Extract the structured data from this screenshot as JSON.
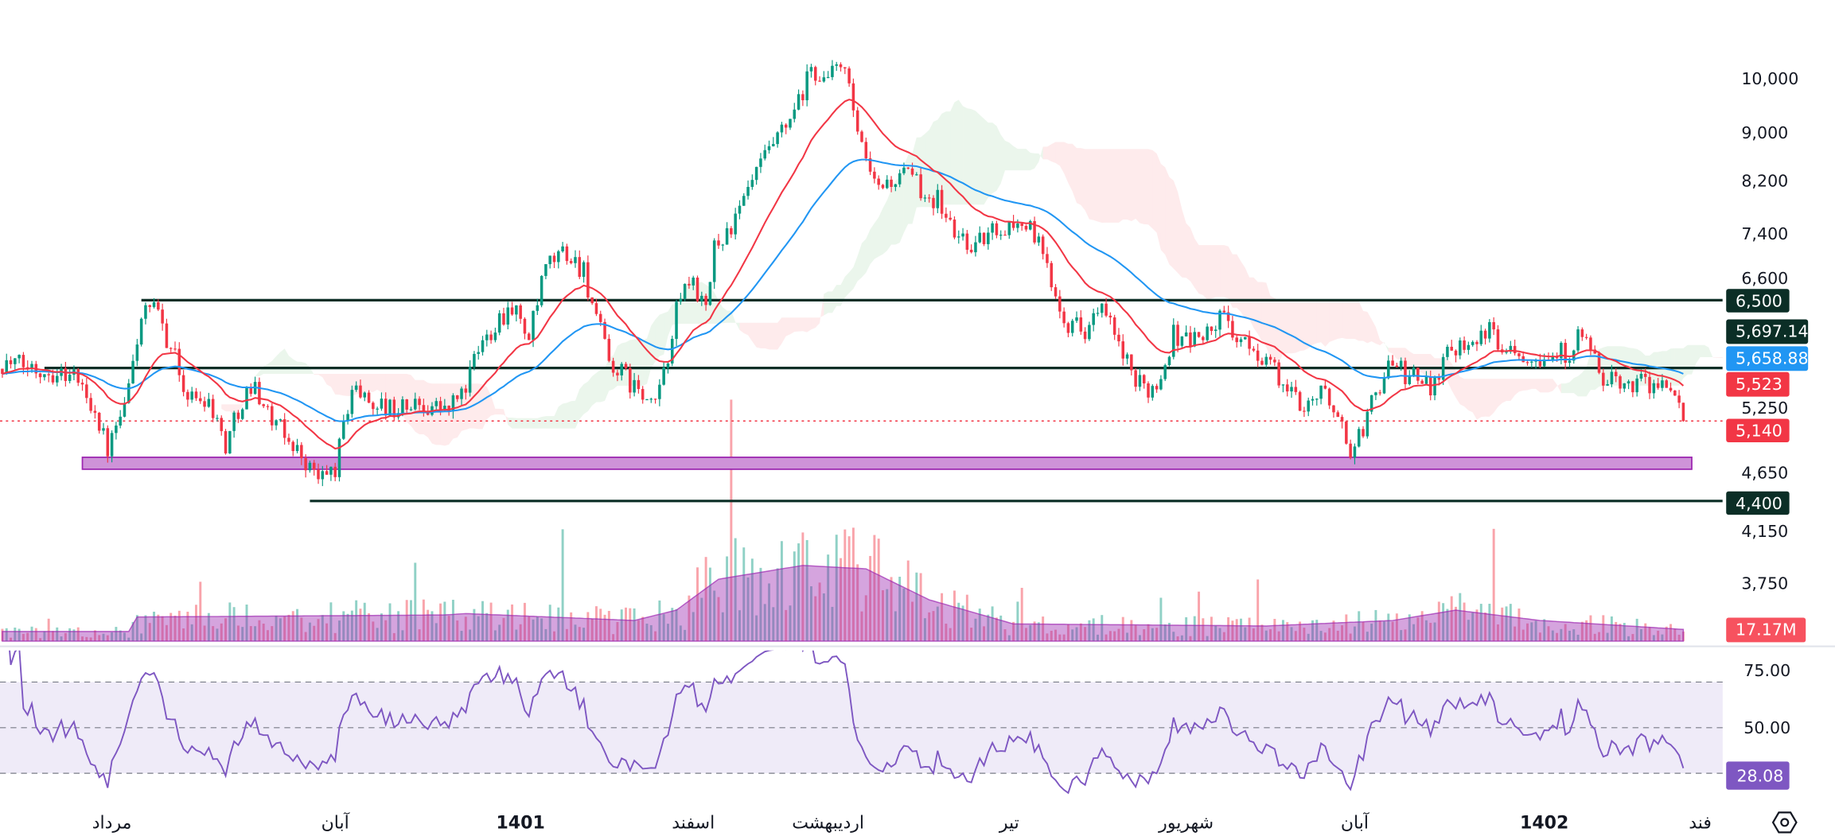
{
  "chart_data": {
    "type": "candlestick",
    "scale": "log",
    "price_axis_ticks": [
      "10,000",
      "9,000",
      "8,200",
      "7,400",
      "6,600",
      "5,250",
      "4,650",
      "4,150",
      "3,750"
    ],
    "price_axis_tick_values": [
      10000,
      9000,
      8200,
      7400,
      6600,
      5250,
      4650,
      4150,
      3750
    ],
    "time_axis_labels": [
      {
        "label": "مرداد",
        "bar": 26,
        "bold": false
      },
      {
        "label": "آبان",
        "bar": 79,
        "bold": false
      },
      {
        "label": "1401",
        "bar": 123,
        "bold": true
      },
      {
        "label": "اسفند",
        "bar": 164,
        "bold": false
      },
      {
        "label": "اردیبهشت",
        "bar": 196,
        "bold": false
      },
      {
        "label": "تیر",
        "bar": 239,
        "bold": false
      },
      {
        "label": "شهریور",
        "bar": 281,
        "bold": false
      },
      {
        "label": "آبان",
        "bar": 321,
        "bold": false
      },
      {
        "label": "1402",
        "bar": 366,
        "bold": true
      },
      {
        "label": "فند",
        "bar": 403,
        "bold": false
      }
    ],
    "close_keypoints": [
      [
        0,
        5757
      ],
      [
        8,
        5692
      ],
      [
        17,
        5627
      ],
      [
        22,
        5256
      ],
      [
        25,
        4854
      ],
      [
        29,
        5256
      ],
      [
        33,
        6304
      ],
      [
        36,
        6376
      ],
      [
        40,
        5956
      ],
      [
        44,
        5377
      ],
      [
        49,
        5377
      ],
      [
        53,
        4910
      ],
      [
        57,
        5377
      ],
      [
        60,
        5501
      ],
      [
        64,
        5138
      ],
      [
        69,
        4910
      ],
      [
        75,
        4586
      ],
      [
        79,
        4691
      ],
      [
        83,
        5501
      ],
      [
        86,
        5377
      ],
      [
        92,
        5256
      ],
      [
        100,
        5316
      ],
      [
        106,
        5256
      ],
      [
        110,
        5501
      ],
      [
        113,
        5889
      ],
      [
        117,
        6233
      ],
      [
        121,
        6449
      ],
      [
        125,
        6024
      ],
      [
        129,
        6904
      ],
      [
        133,
        7143
      ],
      [
        138,
        6904
      ],
      [
        140,
        6449
      ],
      [
        144,
        5757
      ],
      [
        150,
        5501
      ],
      [
        154,
        5256
      ],
      [
        157,
        5627
      ],
      [
        161,
        6598
      ],
      [
        164,
        6749
      ],
      [
        167,
        6304
      ],
      [
        169,
        7225
      ],
      [
        174,
        7562
      ],
      [
        178,
        8187
      ],
      [
        182,
        8666
      ],
      [
        186,
        9069
      ],
      [
        189,
        9490
      ],
      [
        192,
        10160
      ],
      [
        196,
        9932
      ],
      [
        199,
        10394
      ],
      [
        201,
        9709
      ],
      [
        204,
        8666
      ],
      [
        207,
        8095
      ],
      [
        211,
        8187
      ],
      [
        215,
        8281
      ],
      [
        219,
        8004
      ],
      [
        222,
        7913
      ],
      [
        226,
        7391
      ],
      [
        231,
        7225
      ],
      [
        236,
        7476
      ],
      [
        243,
        7562
      ],
      [
        246,
        7225
      ],
      [
        250,
        6598
      ],
      [
        253,
        6233
      ],
      [
        257,
        6163
      ],
      [
        261,
        6376
      ],
      [
        265,
        5956
      ],
      [
        269,
        5501
      ],
      [
        274,
        5501
      ],
      [
        278,
        6093
      ],
      [
        282,
        6024
      ],
      [
        286,
        6093
      ],
      [
        290,
        6304
      ],
      [
        294,
        5956
      ],
      [
        300,
        5822
      ],
      [
        304,
        5501
      ],
      [
        308,
        5316
      ],
      [
        313,
        5438
      ],
      [
        317,
        5256
      ],
      [
        319,
        4854
      ],
      [
        322,
        4966
      ],
      [
        325,
        5316
      ],
      [
        329,
        5757
      ],
      [
        333,
        5627
      ],
      [
        339,
        5501
      ],
      [
        343,
        5889
      ],
      [
        347,
        6024
      ],
      [
        353,
        6093
      ],
      [
        357,
        5956
      ],
      [
        361,
        5889
      ],
      [
        367,
        5822
      ],
      [
        372,
        5889
      ],
      [
        375,
        6093
      ],
      [
        379,
        5627
      ],
      [
        383,
        5501
      ],
      [
        389,
        5564
      ],
      [
        394,
        5501
      ],
      [
        399,
        5140
      ]
    ],
    "volume_profile_millions": [
      [
        0,
        14
      ],
      [
        30,
        14
      ],
      [
        32,
        35
      ],
      [
        105,
        38
      ],
      [
        110,
        40
      ],
      [
        150,
        30
      ],
      [
        160,
        45
      ],
      [
        170,
        90
      ],
      [
        190,
        110
      ],
      [
        205,
        105
      ],
      [
        220,
        60
      ],
      [
        240,
        25
      ],
      [
        300,
        22
      ],
      [
        330,
        30
      ],
      [
        345,
        45
      ],
      [
        365,
        30
      ],
      [
        399,
        17
      ]
    ],
    "indicators": {
      "ema_fast": {
        "period": 20,
        "color": "#f23645",
        "last": "5,523"
      },
      "ema_slow": {
        "period": 50,
        "color": "#2196f3",
        "last": "5,658.884"
      },
      "ichimoku": {
        "up_color": "#4caf50",
        "down_color": "#f23645"
      },
      "volume": {
        "last": "17.17M",
        "color": "#f7525f"
      },
      "rsi": {
        "period": 14,
        "last": "28.08",
        "color": "#7e57c2",
        "levels": [
          70,
          50,
          30
        ],
        "ticks": [
          "75.00",
          "50.00"
        ],
        "tick_values": [
          75,
          50
        ]
      }
    },
    "horizontal_levels": [
      {
        "label": "6,500",
        "value": 6500,
        "from_bar": 33
      },
      {
        "label": "5,697.146",
        "value": 5697.146,
        "from_bar": 10
      },
      {
        "label": "4,400",
        "value": 4400,
        "from_bar": 73
      }
    ],
    "support_zone": {
      "low": 4680,
      "high": 4790,
      "from_bar": 19,
      "to_bar": 401,
      "color": "#ce93d8"
    },
    "last_price": {
      "label": "5,140",
      "value": 5140
    }
  },
  "colors": {
    "up": "#089981",
    "down": "#f23645",
    "level_line": "#0b2e26",
    "rsi_band": "#efebf8"
  },
  "icons": {
    "settings": "settings-hexagon-icon"
  }
}
